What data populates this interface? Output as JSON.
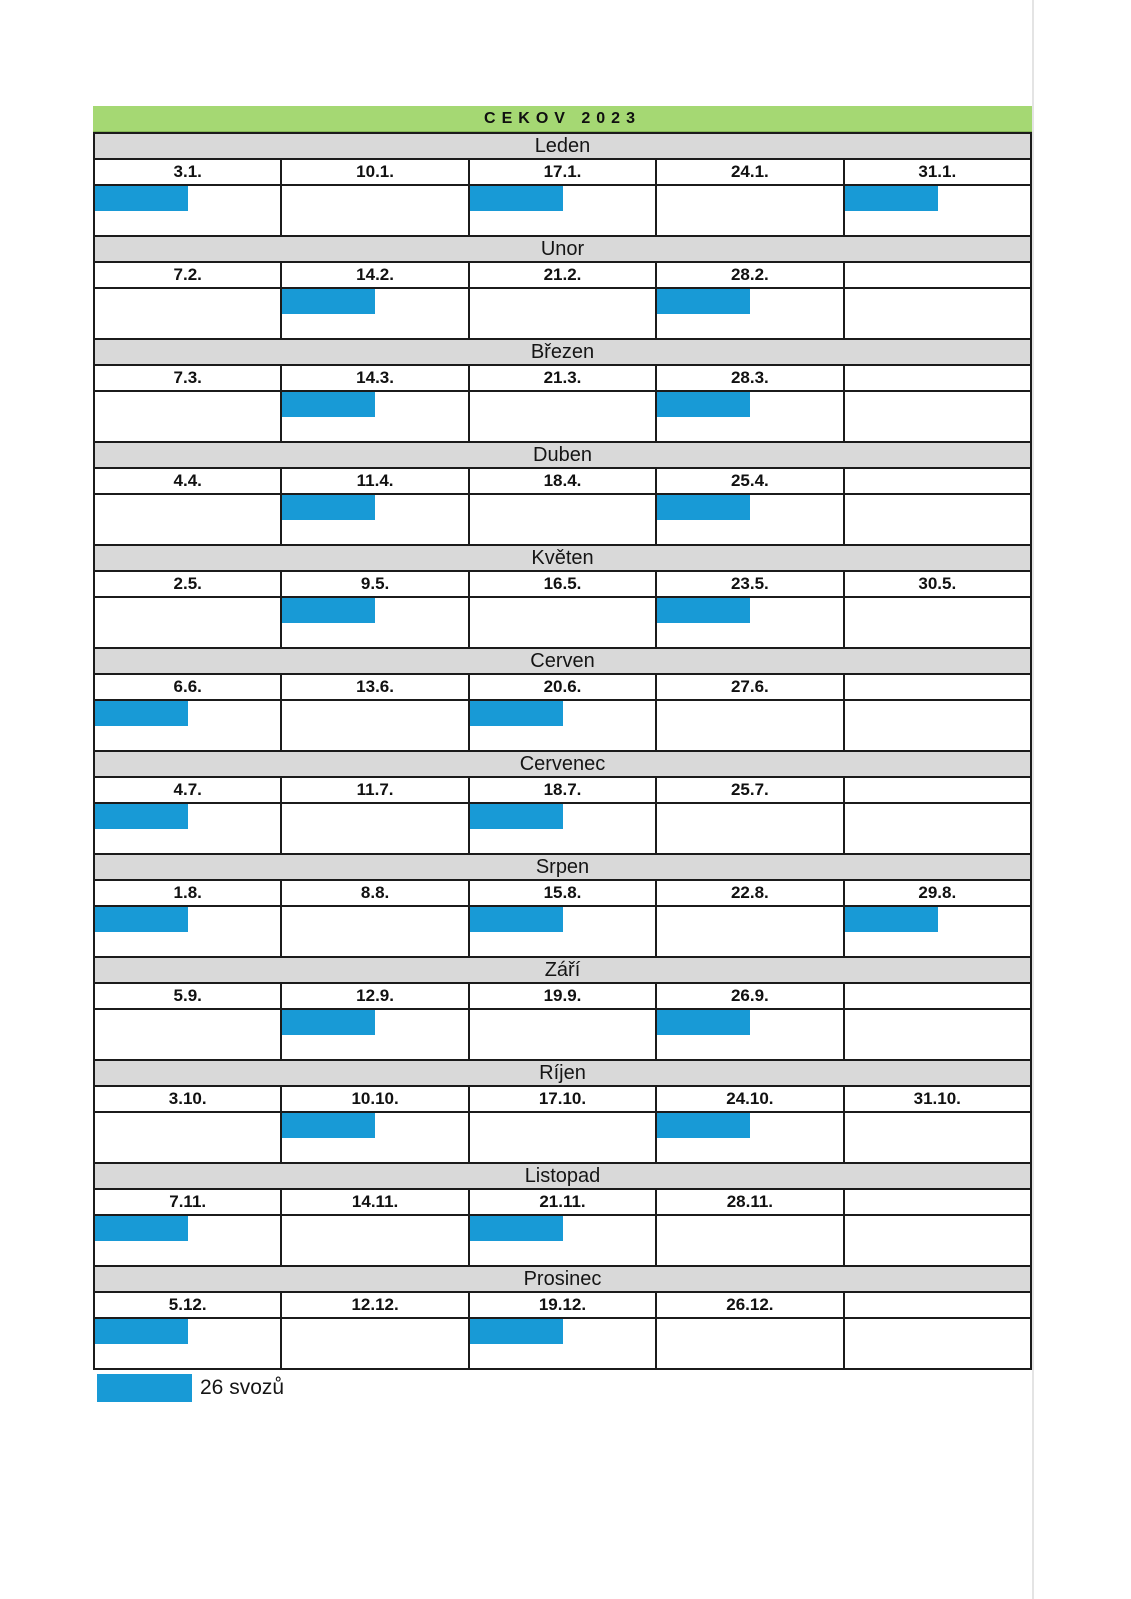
{
  "title": "CEKOV 2023",
  "legend": {
    "label": "26 svozů"
  },
  "colors": {
    "header_green": "#a5d873",
    "month_gray": "#d9d9d9",
    "mark_blue": "#189ad6"
  },
  "months": [
    {
      "name": "Leden",
      "dates": [
        "3.1.",
        "10.1.",
        "17.1.",
        "24.1.",
        "31.1."
      ],
      "marks": [
        true,
        false,
        true,
        false,
        true
      ]
    },
    {
      "name": "Unor",
      "dates": [
        "7.2.",
        "14.2.",
        "21.2.",
        "28.2.",
        ""
      ],
      "marks": [
        false,
        true,
        false,
        true,
        false
      ]
    },
    {
      "name": "Březen",
      "dates": [
        "7.3.",
        "14.3.",
        "21.3.",
        "28.3.",
        ""
      ],
      "marks": [
        false,
        true,
        false,
        true,
        false
      ]
    },
    {
      "name": "Duben",
      "dates": [
        "4.4.",
        "11.4.",
        "18.4.",
        "25.4.",
        ""
      ],
      "marks": [
        false,
        true,
        false,
        true,
        false
      ]
    },
    {
      "name": "Květen",
      "dates": [
        "2.5.",
        "9.5.",
        "16.5.",
        "23.5.",
        "30.5."
      ],
      "marks": [
        false,
        true,
        false,
        true,
        false
      ]
    },
    {
      "name": "Cerven",
      "dates": [
        "6.6.",
        "13.6.",
        "20.6.",
        "27.6.",
        ""
      ],
      "marks": [
        true,
        false,
        true,
        false,
        false
      ]
    },
    {
      "name": "Cervenec",
      "dates": [
        "4.7.",
        "11.7.",
        "18.7.",
        "25.7.",
        ""
      ],
      "marks": [
        true,
        false,
        true,
        false,
        false
      ]
    },
    {
      "name": "Srpen",
      "dates": [
        "1.8.",
        "8.8.",
        "15.8.",
        "22.8.",
        "29.8."
      ],
      "marks": [
        true,
        false,
        true,
        false,
        true
      ]
    },
    {
      "name": "Září",
      "dates": [
        "5.9.",
        "12.9.",
        "19.9.",
        "26.9.",
        ""
      ],
      "marks": [
        false,
        true,
        false,
        true,
        false
      ]
    },
    {
      "name": "Ríjen",
      "dates": [
        "3.10.",
        "10.10.",
        "17.10.",
        "24.10.",
        "31.10."
      ],
      "marks": [
        false,
        true,
        false,
        true,
        false
      ]
    },
    {
      "name": "Listopad",
      "dates": [
        "7.11.",
        "14.11.",
        "21.11.",
        "28.11.",
        ""
      ],
      "marks": [
        true,
        false,
        true,
        false,
        false
      ]
    },
    {
      "name": "Prosinec",
      "dates": [
        "5.12.",
        "12.12.",
        "19.12.",
        "26.12.",
        ""
      ],
      "marks": [
        true,
        false,
        true,
        false,
        false
      ]
    }
  ]
}
